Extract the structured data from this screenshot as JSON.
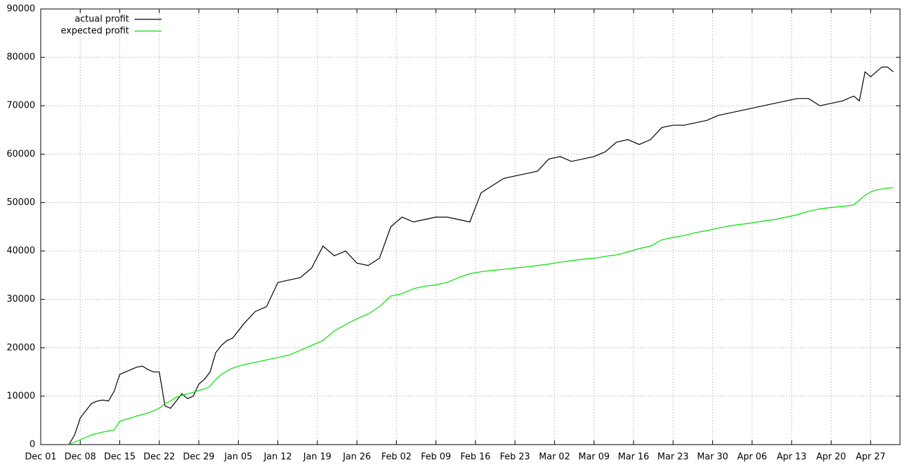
{
  "chart_data": {
    "type": "line",
    "x": [
      5,
      6,
      7,
      8,
      9,
      10,
      11,
      12,
      13,
      14,
      15,
      16,
      17,
      18,
      19,
      20,
      21,
      22,
      23,
      24,
      25,
      26,
      27,
      28,
      29,
      30,
      31,
      32,
      33,
      34,
      36,
      38,
      40,
      42,
      44,
      46,
      48,
      50,
      52,
      54,
      56,
      58,
      60,
      62,
      64,
      66,
      68,
      70,
      72,
      74,
      76,
      78,
      80,
      82,
      84,
      86,
      88,
      90,
      92,
      94,
      96,
      98,
      100,
      102,
      104,
      106,
      108,
      110,
      112,
      114,
      116,
      118,
      120,
      122,
      124,
      126,
      128,
      130,
      132,
      134,
      136,
      138,
      140,
      142,
      144,
      145,
      146,
      147,
      148,
      149,
      150,
      151
    ],
    "series": [
      {
        "name": "actual profit",
        "color": "#000000",
        "values": [
          0,
          2000,
          5500,
          7000,
          8500,
          9000,
          9200,
          9000,
          11000,
          14500,
          15000,
          15500,
          16000,
          16200,
          15500,
          15000,
          15000,
          8000,
          7500,
          9000,
          10500,
          9500,
          10000,
          12500,
          13500,
          15000,
          19000,
          20500,
          21500,
          22000,
          25000,
          27500,
          28500,
          33500,
          34000,
          34500,
          36500,
          41000,
          39000,
          40000,
          37500,
          37000,
          38500,
          45000,
          47000,
          46000,
          46500,
          47000,
          47000,
          46500,
          46000,
          52000,
          53500,
          55000,
          55500,
          56000,
          56500,
          59000,
          59500,
          58500,
          59000,
          59500,
          60500,
          62500,
          63000,
          62000,
          63000,
          65500,
          66000,
          66000,
          66500,
          67000,
          68000,
          68500,
          69000,
          69500,
          70000,
          70500,
          71000,
          71500,
          71500,
          70000,
          70500,
          71000,
          72000,
          71000,
          77000,
          76000,
          77000,
          78000,
          78000,
          77000
        ]
      },
      {
        "name": "expected profit",
        "color": "#00e000",
        "values": [
          0,
          500,
          1000,
          1500,
          2000,
          2300,
          2600,
          2800,
          3000,
          4800,
          5200,
          5500,
          5900,
          6200,
          6500,
          7000,
          7500,
          8500,
          9000,
          9800,
          10200,
          10500,
          10800,
          11200,
          11500,
          12000,
          13500,
          14500,
          15200,
          15800,
          16500,
          17000,
          17500,
          18000,
          18500,
          19500,
          20500,
          21500,
          23500,
          24800,
          26000,
          27000,
          28500,
          30700,
          31200,
          32200,
          32700,
          33000,
          33500,
          34500,
          35300,
          35700,
          36000,
          36200,
          36500,
          36700,
          37000,
          37300,
          37700,
          38000,
          38300,
          38500,
          38900,
          39200,
          39800,
          40500,
          41000,
          42300,
          42800,
          43200,
          43800,
          44200,
          44700,
          45200,
          45500,
          45800,
          46200,
          46500,
          47000,
          47500,
          48200,
          48700,
          49000,
          49200,
          49500,
          50500,
          51500,
          52200,
          52600,
          52800,
          53000,
          53100
        ]
      }
    ],
    "xlim": [
      0,
      152.2
    ],
    "xticks": [
      {
        "value": 0,
        "label": "Dec 01"
      },
      {
        "value": 7,
        "label": "Dec 08"
      },
      {
        "value": 14,
        "label": "Dec 15"
      },
      {
        "value": 21,
        "label": "Dec 22"
      },
      {
        "value": 28,
        "label": "Dec 29"
      },
      {
        "value": 35,
        "label": "Jan 05"
      },
      {
        "value": 42,
        "label": "Jan 12"
      },
      {
        "value": 49,
        "label": "Jan 19"
      },
      {
        "value": 56,
        "label": "Jan 26"
      },
      {
        "value": 63,
        "label": "Feb 02"
      },
      {
        "value": 70,
        "label": "Feb 09"
      },
      {
        "value": 77,
        "label": "Feb 16"
      },
      {
        "value": 84,
        "label": "Feb 23"
      },
      {
        "value": 91,
        "label": "Mar 02"
      },
      {
        "value": 98,
        "label": "Mar 09"
      },
      {
        "value": 105,
        "label": "Mar 16"
      },
      {
        "value": 112,
        "label": "Mar 23"
      },
      {
        "value": 119,
        "label": "Mar 30"
      },
      {
        "value": 126,
        "label": "Apr 06"
      },
      {
        "value": 133,
        "label": "Apr 13"
      },
      {
        "value": 140,
        "label": "Apr 20"
      },
      {
        "value": 147,
        "label": "Apr 27"
      }
    ],
    "ylim": [
      0,
      90000
    ],
    "yticks": [
      0,
      10000,
      20000,
      30000,
      40000,
      50000,
      60000,
      70000,
      80000,
      90000
    ],
    "grid": true,
    "legend": "top-left"
  }
}
